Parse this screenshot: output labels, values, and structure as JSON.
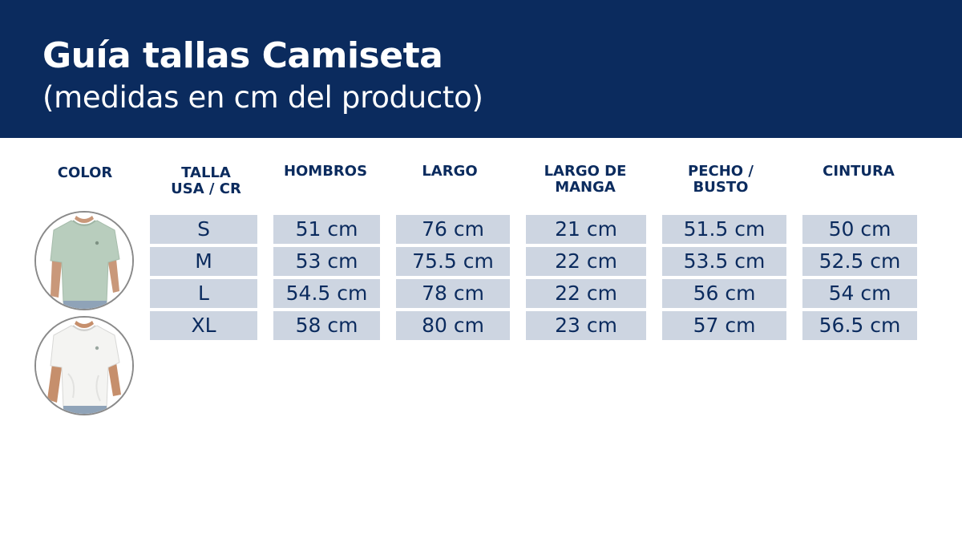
{
  "header": {
    "title": "Guía tallas Camiseta",
    "subtitle": "(medidas en cm del producto)"
  },
  "columns": {
    "color": "COLOR",
    "talla_line1": "TALLA",
    "talla_line2": "USA / CR",
    "hombros": "HOMBROS",
    "largo": "LARGO",
    "manga_line1": "LARGO DE",
    "manga_line2": "MANGA",
    "pecho_line1": "PECHO /",
    "pecho_line2": "BUSTO",
    "cintura": "CINTURA"
  },
  "rows": [
    {
      "talla": "S",
      "hombros": "51 cm",
      "largo": "76 cm",
      "manga": "21 cm",
      "pecho": "51.5 cm",
      "cintura": "50 cm"
    },
    {
      "talla": "M",
      "hombros": "53 cm",
      "largo": "75.5 cm",
      "manga": "22 cm",
      "pecho": "53.5 cm",
      "cintura": "52.5 cm"
    },
    {
      "talla": "L",
      "hombros": "54.5 cm",
      "largo": "78 cm",
      "manga": "22 cm",
      "pecho": "56 cm",
      "cintura": "54 cm"
    },
    {
      "talla": "XL",
      "hombros": "58 cm",
      "largo": "80 cm",
      "manga": "23 cm",
      "pecho": "57 cm",
      "cintura": "56.5 cm"
    }
  ],
  "colors": {
    "banner": "#0b2b5e",
    "cell_background": "#cdd5e1",
    "text": "#0b2b5e",
    "shirt_green": "#b8cdbd",
    "shirt_white": "#f4f4f2"
  },
  "swatches": [
    {
      "color": "green"
    },
    {
      "color": "white"
    }
  ]
}
